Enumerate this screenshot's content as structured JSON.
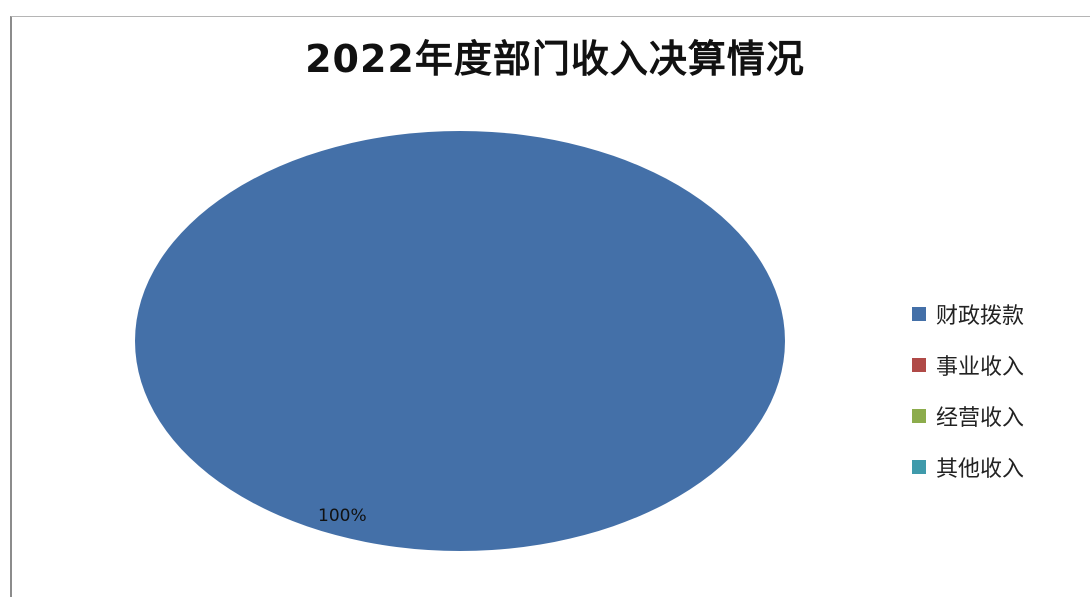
{
  "chart_data": {
    "type": "pie",
    "title": "2022年度部门收入决算情况",
    "categories": [
      "财政拨款",
      "事业收入",
      "经营收入",
      "其他收入"
    ],
    "values": [
      100,
      0,
      0,
      0
    ],
    "data_labels": [
      "100%",
      "",
      "",
      ""
    ],
    "colors": [
      "#4470a8",
      "#b04a47",
      "#8cac4c",
      "#3f9aab"
    ],
    "legend_position": "right"
  }
}
